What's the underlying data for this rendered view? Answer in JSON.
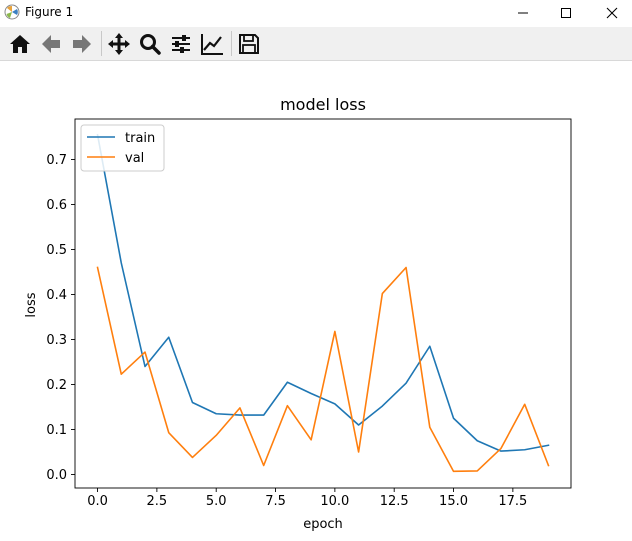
{
  "window": {
    "title": "Figure 1",
    "controls": [
      "minimize",
      "maximize",
      "close"
    ]
  },
  "toolbar": {
    "buttons": [
      {
        "name": "home",
        "icon": "home-icon"
      },
      {
        "name": "back",
        "icon": "arrow-left-icon"
      },
      {
        "name": "forward",
        "icon": "arrow-right-icon"
      },
      {
        "name": "pan",
        "icon": "move-icon"
      },
      {
        "name": "zoom",
        "icon": "magnifier-icon"
      },
      {
        "name": "configure-subplots",
        "icon": "sliders-icon"
      },
      {
        "name": "edit-axis",
        "icon": "line-chart-icon"
      },
      {
        "name": "save",
        "icon": "floppy-disk-icon"
      }
    ]
  },
  "chart_data": {
    "type": "line",
    "title": "model loss",
    "xlabel": "epoch",
    "ylabel": "loss",
    "xlim": [
      -0.95,
      19.95
    ],
    "ylim": [
      -0.03,
      0.79
    ],
    "xticks": [
      "0.0",
      "2.5",
      "5.0",
      "7.5",
      "10.0",
      "12.5",
      "15.0",
      "17.5"
    ],
    "yticks": [
      "0.0",
      "0.1",
      "0.2",
      "0.3",
      "0.4",
      "0.5",
      "0.6",
      "0.7"
    ],
    "legend_position": "upper left",
    "x": [
      0,
      1,
      2,
      3,
      4,
      5,
      6,
      7,
      8,
      9,
      10,
      11,
      12,
      13,
      14,
      15,
      16,
      17,
      18,
      19
    ],
    "series": [
      {
        "name": "train",
        "color": "#1f77b4",
        "values": [
          0.755,
          0.47,
          0.24,
          0.305,
          0.16,
          0.135,
          0.132,
          0.132,
          0.205,
          0.18,
          0.157,
          0.11,
          0.152,
          0.203,
          0.285,
          0.125,
          0.075,
          0.052,
          0.055,
          0.065
        ]
      },
      {
        "name": "val",
        "color": "#ff7f0e",
        "values": [
          0.46,
          0.223,
          0.272,
          0.093,
          0.038,
          0.087,
          0.148,
          0.02,
          0.153,
          0.077,
          0.318,
          0.05,
          0.402,
          0.46,
          0.105,
          0.007,
          0.008,
          0.058,
          0.156,
          0.02
        ]
      }
    ]
  }
}
